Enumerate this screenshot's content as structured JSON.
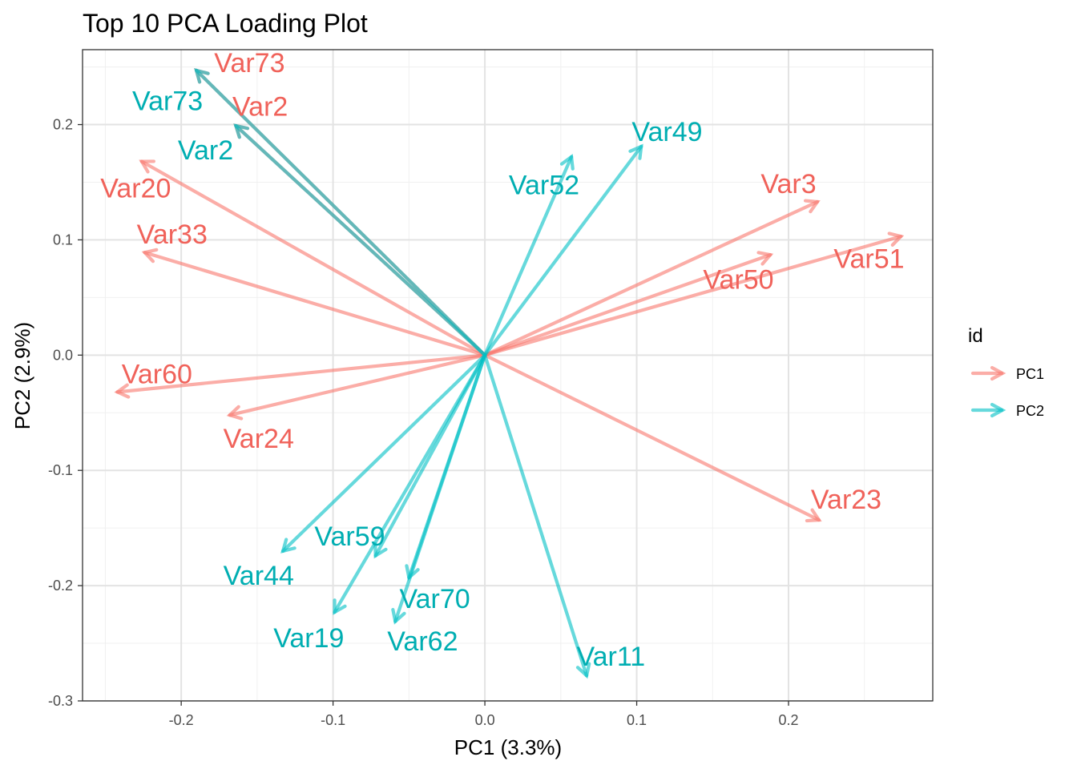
{
  "chart_data": {
    "type": "scatter",
    "title": "Top 10 PCA Loading Plot",
    "xlabel": "PC1 (3.3%)",
    "ylabel": "PC2 (2.9%)",
    "xlim": [
      -0.265,
      0.295
    ],
    "ylim": [
      -0.3,
      0.265
    ],
    "xticks": [
      -0.2,
      -0.1,
      0.0,
      0.1,
      0.2
    ],
    "xtick_labels": [
      "-0.2",
      "-0.1",
      "0.0",
      "0.1",
      "0.2"
    ],
    "yticks": [
      -0.3,
      -0.2,
      -0.1,
      0.0,
      0.1,
      0.2
    ],
    "ytick_labels": [
      "-0.3",
      "-0.2",
      "-0.1",
      "0.0",
      "0.1",
      "0.2"
    ],
    "grid": true,
    "legend": {
      "title": "id",
      "position": "right",
      "entries": [
        {
          "name": "PC1",
          "color": "#F8766D"
        },
        {
          "name": "PC2",
          "color": "#00BFC4"
        }
      ]
    },
    "series": [
      {
        "name": "PC1",
        "color": "#F8766D",
        "label_color": "#F0625A",
        "vectors": [
          {
            "label": "Var73",
            "x": -0.19,
            "y": 0.247,
            "lx": -0.155,
            "ly": 0.254
          },
          {
            "label": "Var2",
            "x": -0.164,
            "y": 0.199,
            "lx": -0.148,
            "ly": 0.216
          },
          {
            "label": "Var20",
            "x": -0.226,
            "y": 0.168,
            "lx": -0.23,
            "ly": 0.145
          },
          {
            "label": "Var33",
            "x": -0.224,
            "y": 0.089,
            "lx": -0.206,
            "ly": 0.105
          },
          {
            "label": "Var60",
            "x": -0.242,
            "y": -0.032,
            "lx": -0.216,
            "ly": -0.016
          },
          {
            "label": "Var24",
            "x": -0.168,
            "y": -0.052,
            "lx": -0.149,
            "ly": -0.072
          },
          {
            "label": "Var3",
            "x": 0.219,
            "y": 0.133,
            "lx": 0.2,
            "ly": 0.149
          },
          {
            "label": "Var50",
            "x": 0.188,
            "y": 0.087,
            "lx": 0.167,
            "ly": 0.066
          },
          {
            "label": "Var51",
            "x": 0.274,
            "y": 0.103,
            "lx": 0.253,
            "ly": 0.084
          },
          {
            "label": "Var23",
            "x": 0.22,
            "y": -0.143,
            "lx": 0.238,
            "ly": -0.125
          }
        ]
      },
      {
        "name": "PC2",
        "color": "#00BFC4",
        "label_color": "#00AEB2",
        "vectors": [
          {
            "label": "Var73",
            "x": -0.19,
            "y": 0.247,
            "lx": -0.209,
            "ly": 0.221
          },
          {
            "label": "Var2",
            "x": -0.164,
            "y": 0.199,
            "lx": -0.184,
            "ly": 0.178
          },
          {
            "label": "Var49",
            "x": 0.103,
            "y": 0.181,
            "lx": 0.12,
            "ly": 0.194
          },
          {
            "label": "Var52",
            "x": 0.057,
            "y": 0.172,
            "lx": 0.039,
            "ly": 0.148
          },
          {
            "label": "Var59",
            "x": -0.072,
            "y": -0.174,
            "lx": -0.089,
            "ly": -0.157
          },
          {
            "label": "Var44",
            "x": -0.133,
            "y": -0.17,
            "lx": -0.149,
            "ly": -0.191
          },
          {
            "label": "Var19",
            "x": -0.099,
            "y": -0.223,
            "lx": -0.116,
            "ly": -0.245
          },
          {
            "label": "Var70",
            "x": -0.05,
            "y": -0.193,
            "lx": -0.033,
            "ly": -0.211
          },
          {
            "label": "Var62",
            "x": -0.059,
            "y": -0.231,
            "lx": -0.041,
            "ly": -0.248
          },
          {
            "label": "Var11",
            "x": 0.067,
            "y": -0.278,
            "lx": 0.083,
            "ly": -0.261
          }
        ]
      }
    ]
  }
}
